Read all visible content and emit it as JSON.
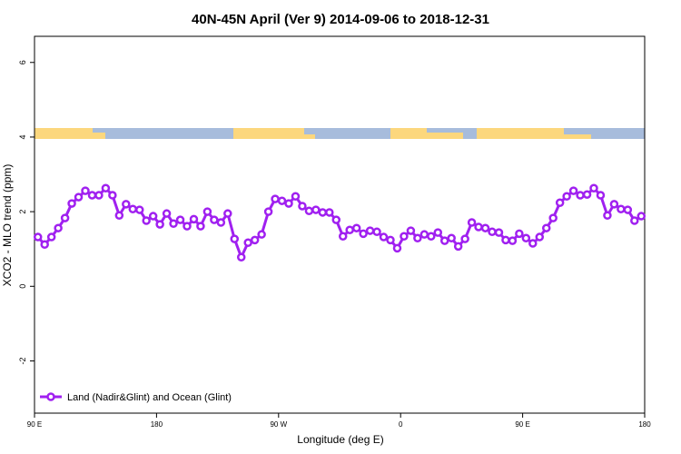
{
  "chart_data": {
    "type": "line",
    "title": "40N-45N April (Ver 9)   2014-09-06 to 2018-12-31",
    "xlabel": "Longitude (deg E)",
    "ylabel": "XCO2 - MLO trend (ppm)",
    "xlim": [
      90,
      540
    ],
    "ylim": [
      -3.4,
      6.7
    ],
    "xticks": [
      {
        "value": 90,
        "label": "90 E"
      },
      180,
      {
        "value": 270,
        "label": "90 W"
      },
      {
        "value": 360,
        "label": "0"
      },
      {
        "value": 450,
        "label": "90 E"
      },
      {
        "value": 540,
        "label": "180"
      }
    ],
    "yticks": [
      -2,
      0,
      2,
      4,
      6
    ],
    "legend": "bottom-left",
    "x": [
      92.5,
      97.5,
      102.5,
      107.5,
      112.5,
      117.5,
      122.5,
      127.5,
      132.5,
      137.5,
      142.5,
      147.5,
      152.5,
      157.5,
      162.5,
      167.5,
      172.5,
      177.5,
      182.5,
      187.5,
      192.5,
      197.5,
      202.5,
      207.5,
      212.5,
      217.5,
      222.5,
      227.5,
      232.5,
      237.5,
      242.5,
      247.5,
      252.5,
      257.5,
      262.5,
      267.5,
      272.5,
      277.5,
      282.5,
      287.5,
      292.5,
      297.5,
      302.5,
      307.5,
      312.5,
      317.5,
      322.5,
      327.5,
      332.5,
      337.5,
      342.5,
      347.5,
      352.5,
      357.5,
      362.5,
      367.5,
      372.5,
      377.5,
      382.5,
      387.5,
      392.5,
      397.5,
      402.5,
      407.5,
      412.5,
      417.5,
      422.5,
      427.5,
      432.5,
      437.5,
      442.5,
      447.5,
      452.5,
      457.5,
      462.5,
      467.5,
      472.5,
      477.5,
      482.5,
      487.5,
      492.5,
      497.5,
      502.5,
      507.5,
      512.5,
      517.5,
      522.5,
      527.5,
      532.5,
      537.5
    ],
    "series": [
      {
        "name": "Land (Nadir&Glint) and Ocean (Glint)",
        "color": "#a020f0",
        "values": [
          1.32,
          1.12,
          1.32,
          1.56,
          1.83,
          2.22,
          2.39,
          2.56,
          2.44,
          2.44,
          2.63,
          2.44,
          1.9,
          2.2,
          2.07,
          2.05,
          1.76,
          1.88,
          1.66,
          1.95,
          1.68,
          1.78,
          1.61,
          1.8,
          1.61,
          2.0,
          1.78,
          1.71,
          1.95,
          1.27,
          0.78,
          1.17,
          1.24,
          1.39,
          2.0,
          2.34,
          2.29,
          2.22,
          2.41,
          2.15,
          2.02,
          2.05,
          1.98,
          1.98,
          1.78,
          1.34,
          1.51,
          1.56,
          1.41,
          1.49,
          1.46,
          1.32,
          1.24,
          1.02,
          1.34,
          1.49,
          1.29,
          1.39,
          1.34,
          1.44,
          1.22,
          1.29,
          1.07,
          1.27,
          1.71,
          1.59,
          1.56,
          1.46,
          1.44,
          1.24,
          1.22,
          1.41,
          1.29,
          1.15,
          1.32,
          1.56,
          1.83,
          2.24,
          2.41,
          2.56,
          2.44,
          2.46,
          2.63,
          2.44,
          1.9,
          2.2,
          2.07,
          2.05,
          1.76,
          1.88
        ]
      }
    ]
  }
}
